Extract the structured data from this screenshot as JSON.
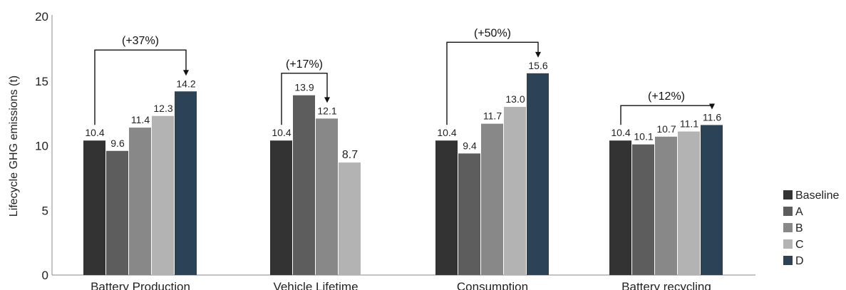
{
  "chart_data": {
    "type": "bar",
    "ylabel": "Lifecycle GHG emissions (t)",
    "ylim": [
      0,
      20
    ],
    "yticks": [
      0,
      5,
      10,
      15,
      20
    ],
    "grid": false,
    "legend_placement": "right-bottom",
    "categories": [
      "Battery Production",
      "Vehicle Lifetime",
      "Consumption",
      "Battery recycling"
    ],
    "series": [
      {
        "name": "Baseline",
        "color": "#333333",
        "values": [
          10.4,
          10.4,
          10.4,
          10.4
        ],
        "labels": [
          "10.4",
          "10.4",
          "10.4",
          "10.4"
        ]
      },
      {
        "name": "A",
        "color": "#5d5d5d",
        "values": [
          9.6,
          13.9,
          9.4,
          10.1
        ],
        "labels": [
          "9.6",
          "13.9",
          "9.4",
          "10.1"
        ]
      },
      {
        "name": "B",
        "color": "#888888",
        "values": [
          11.4,
          12.1,
          11.7,
          10.7
        ],
        "labels": [
          "11.4",
          "12.1",
          "11.7",
          "10.7"
        ]
      },
      {
        "name": "C",
        "color": "#b3b3b3",
        "values": [
          12.3,
          8.7,
          13.0,
          11.1
        ],
        "labels": [
          "12.3",
          "8.7",
          "13.0",
          "11.1"
        ]
      },
      {
        "name": "D",
        "color": "#2c4256",
        "values": [
          14.2,
          null,
          15.6,
          11.6
        ],
        "labels": [
          "14.2",
          "",
          "15.6",
          "11.6"
        ]
      }
    ],
    "annotations": [
      {
        "category": 0,
        "text": "(+37%)",
        "from_series": 0,
        "to_series": 4,
        "level": 17.4
      },
      {
        "category": 1,
        "text": "(+17%)",
        "from_series": 0,
        "to_series": 2,
        "level": 15.6
      },
      {
        "category": 2,
        "text": "(+50%)",
        "from_series": 0,
        "to_series": 4,
        "level": 18.0
      },
      {
        "category": 3,
        "text": "(+12%)",
        "from_series": 0,
        "to_series": 4,
        "level": 13.1
      }
    ]
  }
}
